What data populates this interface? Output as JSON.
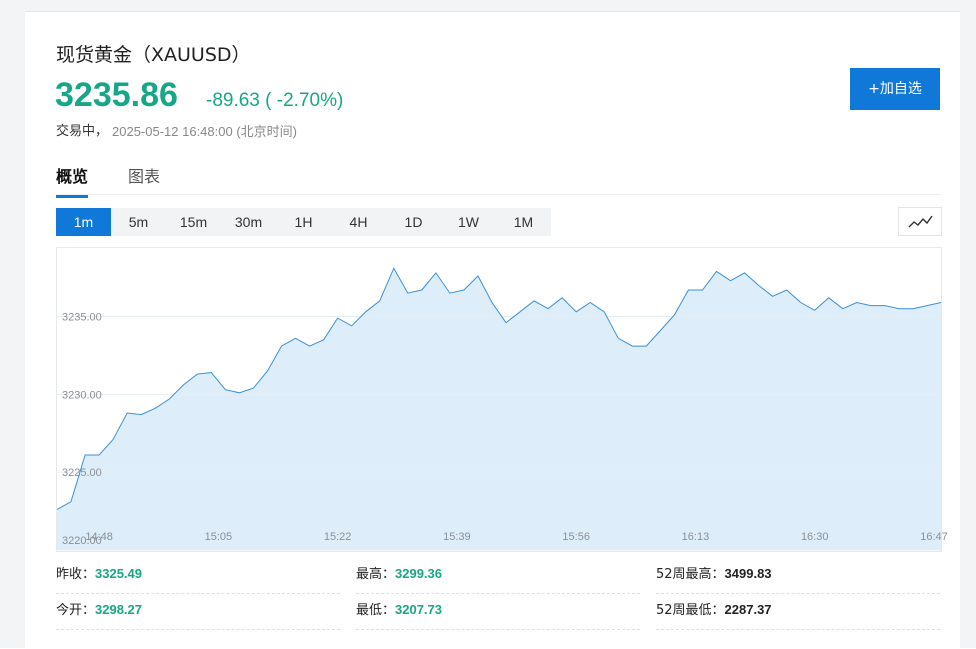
{
  "header": {
    "title": "现货黄金（XAUUSD）",
    "price": "3235.86",
    "change": "-89.63 ( -2.70%)",
    "status": "交易中，",
    "timestamp": "2025-05-12 16:48:00 (北京时间)",
    "button": "+加自选"
  },
  "tabs": [
    "概览",
    "图表"
  ],
  "intervals": [
    "1m",
    "5m",
    "15m",
    "30m",
    "1H",
    "4H",
    "1D",
    "1W",
    "1M"
  ],
  "chart_data": {
    "type": "area",
    "color": "#3d8fd6",
    "fill": "#ddeefa",
    "grid": true,
    "x": [
      "14:42",
      "14:44",
      "14:46",
      "14:48",
      "14:50",
      "14:52",
      "14:54",
      "14:56",
      "14:58",
      "15:00",
      "15:02",
      "15:04",
      "15:06",
      "15:08",
      "15:10",
      "15:12",
      "15:14",
      "15:16",
      "15:18",
      "15:20",
      "15:22",
      "15:24",
      "15:26",
      "15:28",
      "15:30",
      "15:32",
      "15:34",
      "15:36",
      "15:38",
      "15:40",
      "15:42",
      "15:44",
      "15:46",
      "15:48",
      "15:50",
      "15:52",
      "15:54",
      "15:56",
      "15:58",
      "16:00",
      "16:02",
      "16:04",
      "16:06",
      "16:08",
      "16:10",
      "16:12",
      "16:14",
      "16:16",
      "16:18",
      "16:20",
      "16:22",
      "16:24",
      "16:26",
      "16:28",
      "16:30",
      "16:32",
      "16:34",
      "16:36",
      "16:38",
      "16:40",
      "16:42",
      "16:44",
      "16:46",
      "16:48"
    ],
    "values": [
      3222.6,
      3223.1,
      3226.1,
      3226.1,
      3227.1,
      3228.8,
      3228.7,
      3229.1,
      3229.7,
      3230.6,
      3231.3,
      3231.4,
      3230.3,
      3230.1,
      3230.4,
      3231.5,
      3233.1,
      3233.6,
      3233.1,
      3233.5,
      3234.9,
      3234.4,
      3235.3,
      3236.0,
      3238.1,
      3236.5,
      3236.7,
      3237.8,
      3236.5,
      3236.7,
      3237.6,
      3235.9,
      3234.6,
      3235.3,
      3236.0,
      3235.5,
      3236.2,
      3235.3,
      3235.9,
      3235.3,
      3233.6,
      3233.1,
      3233.1,
      3234.1,
      3235.1,
      3236.7,
      3236.7,
      3237.9,
      3237.3,
      3237.8,
      3237.0,
      3236.3,
      3236.7,
      3235.9,
      3235.4,
      3236.2,
      3235.5,
      3235.9,
      3235.7,
      3235.7,
      3235.5,
      3235.5,
      3235.7,
      3235.9
    ],
    "xlim": [
      "14:42",
      "16:48"
    ],
    "xticks": [
      "14:48",
      "15:05",
      "15:22",
      "15:39",
      "15:56",
      "16:13",
      "16:30",
      "16:47"
    ],
    "ylim": [
      3220,
      3239.4
    ],
    "yticks": [
      {
        "value": 3220,
        "label": "3220.00"
      },
      {
        "value": 3225,
        "label": "3225.00"
      },
      {
        "value": 3230,
        "label": "3230.00"
      },
      {
        "value": 3235,
        "label": "3235.00"
      }
    ]
  },
  "stats": [
    {
      "label": "昨收：",
      "value": "3325.49"
    },
    {
      "label": "最高：",
      "value": "3299.36"
    },
    {
      "label": "52周最高：",
      "value": "3499.83"
    },
    {
      "label": "今开：",
      "value": "3298.27"
    },
    {
      "label": "最低：",
      "value": "3207.73"
    },
    {
      "label": "52周最低：",
      "value": "2287.37"
    }
  ]
}
